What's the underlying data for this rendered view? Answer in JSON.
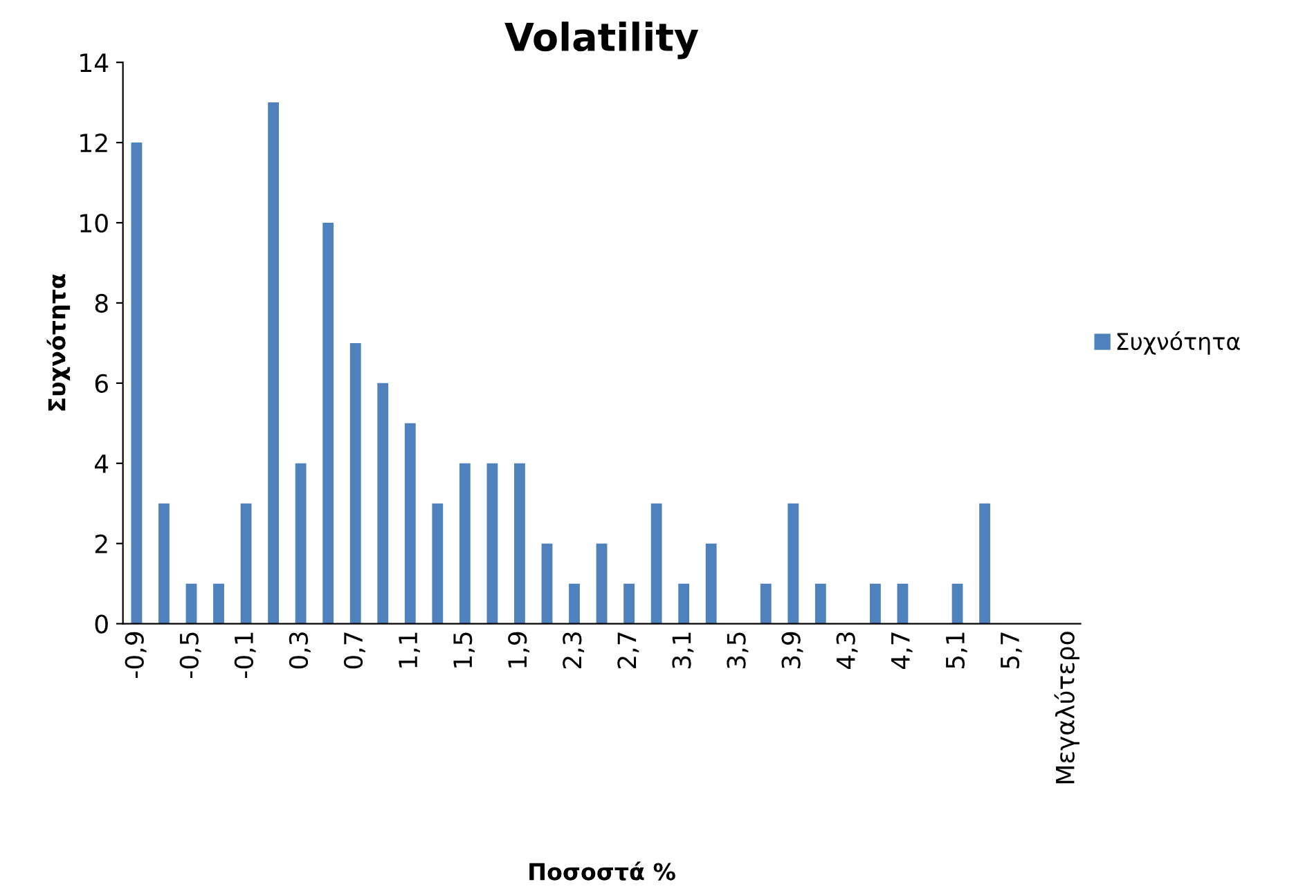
{
  "chart_data": {
    "type": "bar",
    "title": "Volatility",
    "xlabel": "Ποσοστά %",
    "ylabel": "Συχνότητα",
    "categories": [
      "-0,9",
      null,
      "-0,5",
      null,
      "-0,1",
      null,
      "0,3",
      null,
      "0,7",
      null,
      "1,1",
      null,
      "1,5",
      null,
      "1,9",
      null,
      "2,3",
      null,
      "2,7",
      null,
      "3,1",
      null,
      "3,5",
      null,
      "3,9",
      null,
      "4,3",
      null,
      "4,7",
      null,
      "5,1",
      null,
      "5,7",
      null,
      "Μεγαλύτερο"
    ],
    "series": [
      {
        "name": "Συχνότητα",
        "color": "#4f81bd",
        "values": [
          12,
          3,
          1,
          1,
          3,
          13,
          4,
          10,
          7,
          6,
          5,
          3,
          4,
          4,
          4,
          2,
          1,
          2,
          1,
          3,
          1,
          2,
          0,
          1,
          3,
          1,
          0,
          1,
          1,
          0,
          1,
          3,
          0,
          0,
          0
        ]
      }
    ],
    "ylim": [
      0,
      14
    ],
    "yticks": [
      0,
      2,
      4,
      6,
      8,
      10,
      12,
      14
    ],
    "grid": false,
    "legend": "right"
  }
}
